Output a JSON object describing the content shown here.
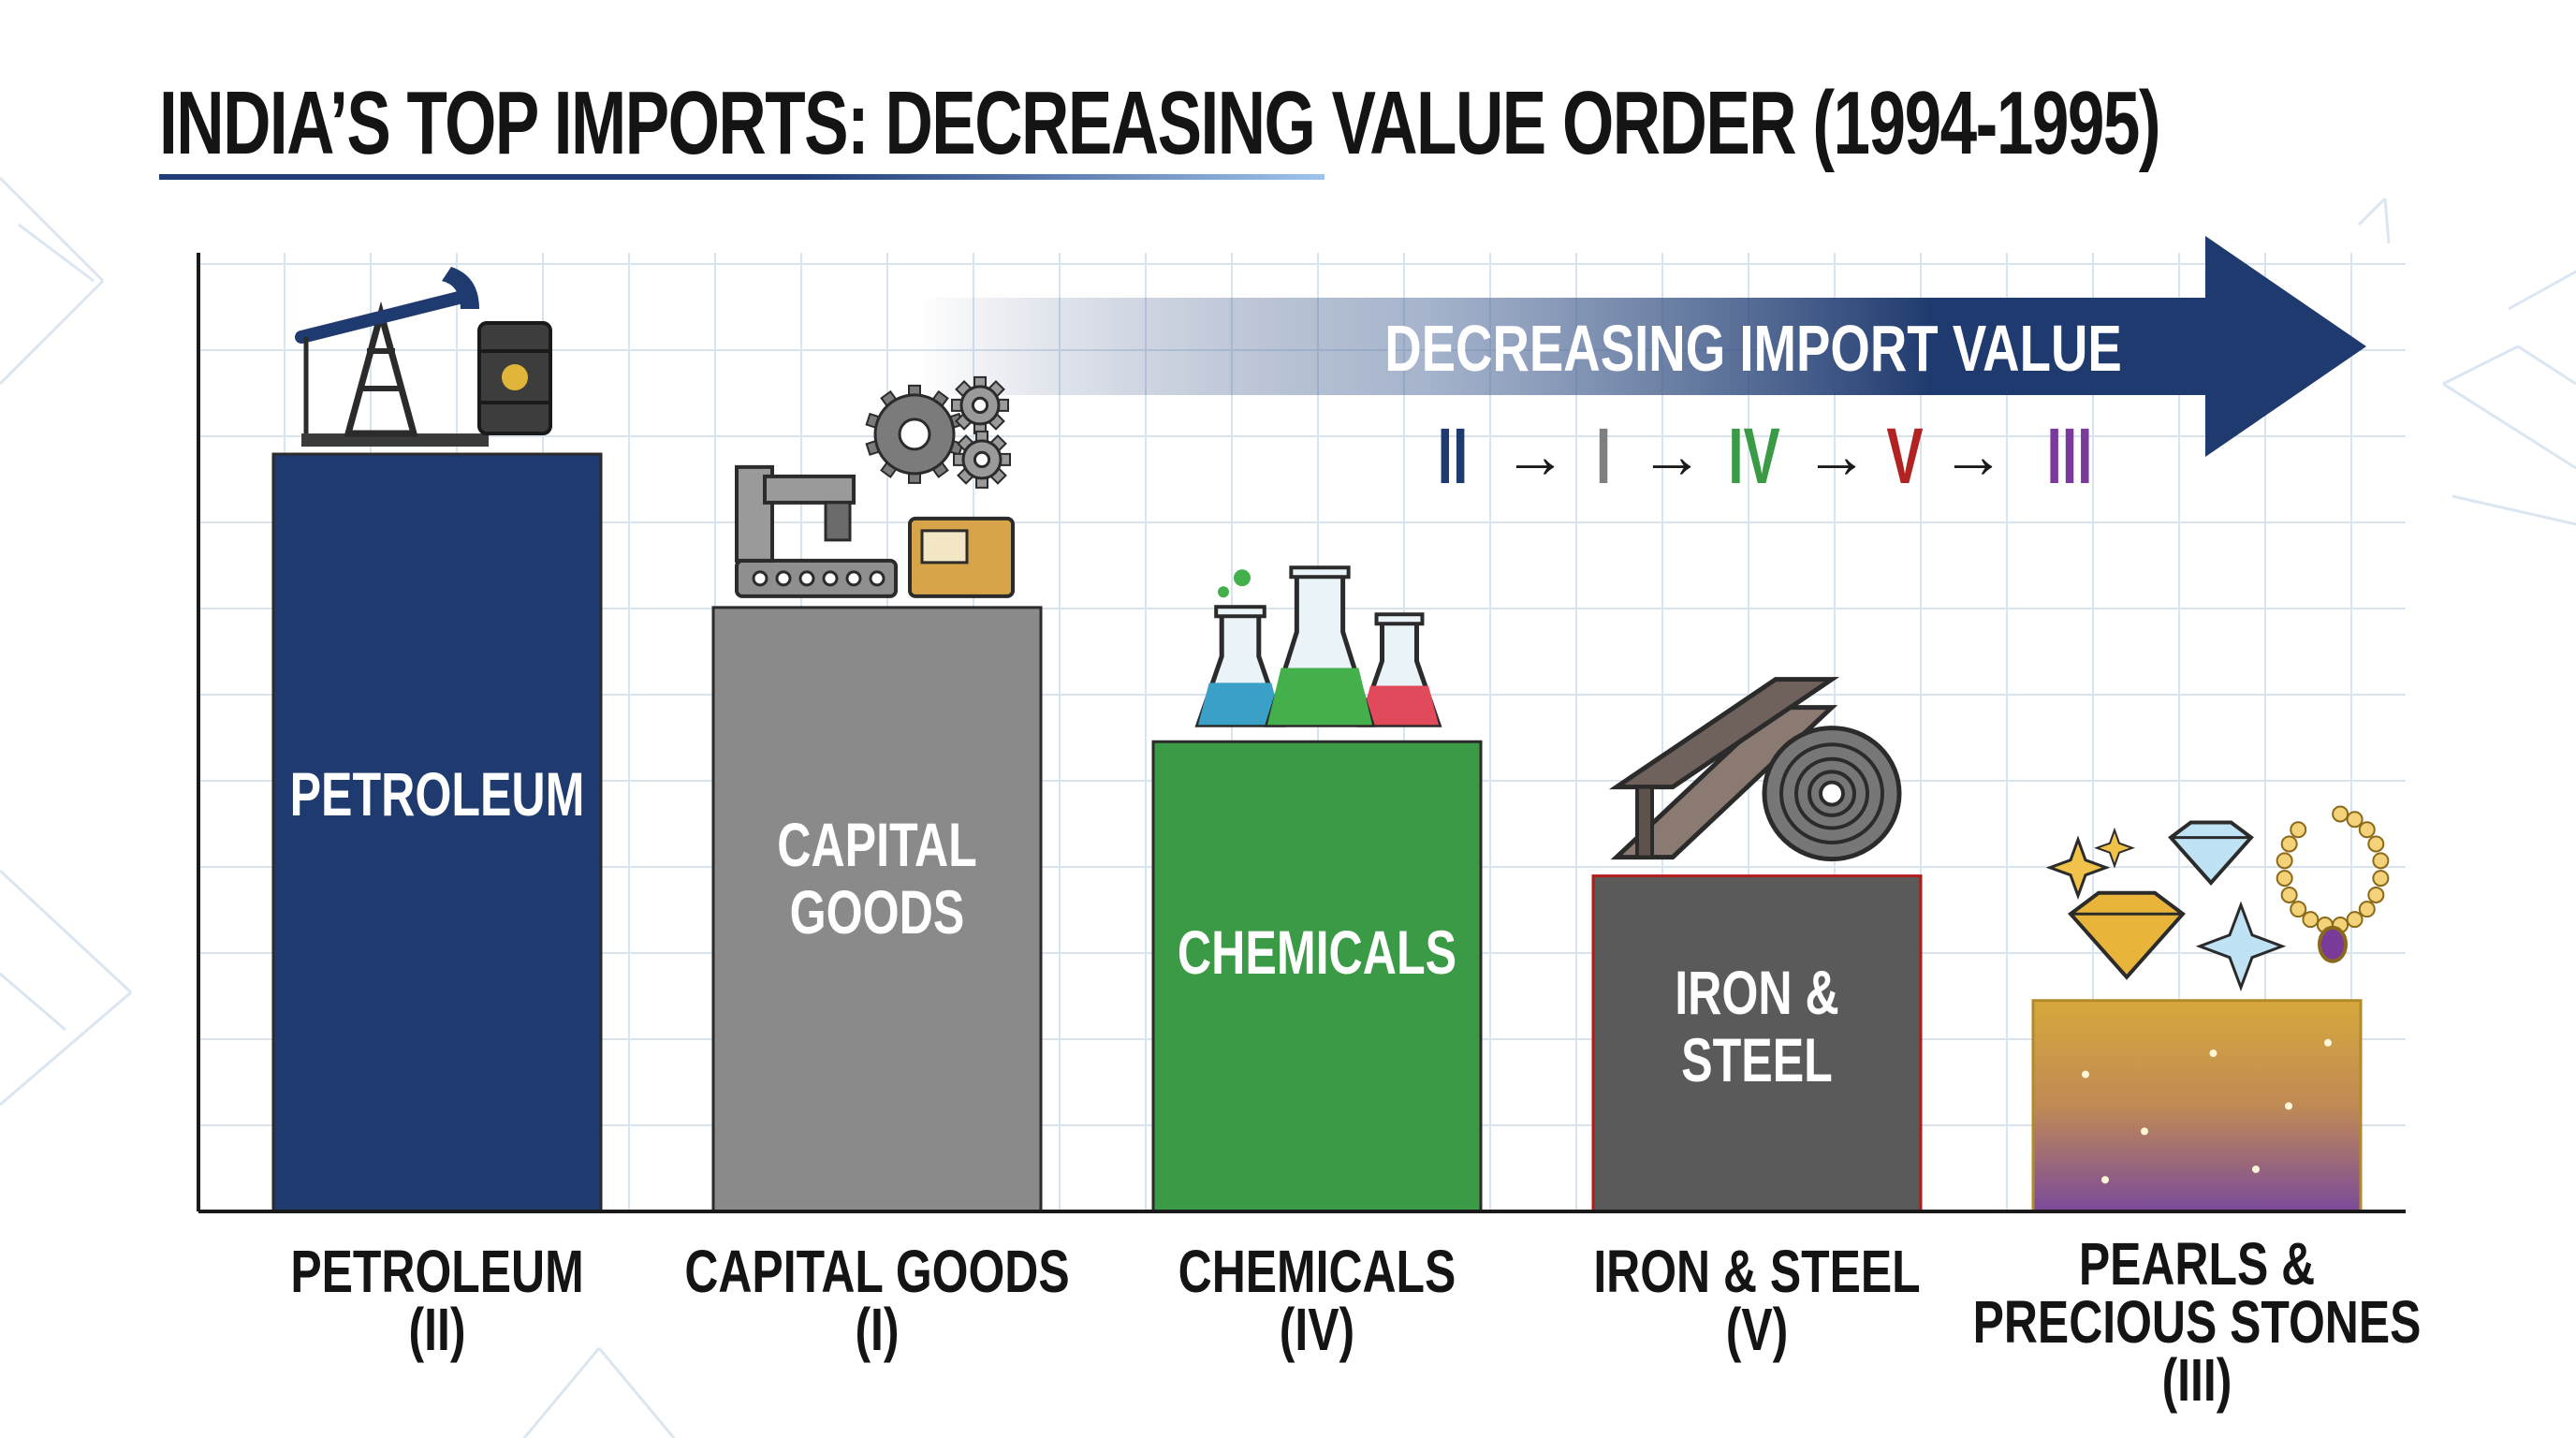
{
  "chart_data": {
    "type": "bar",
    "title": "INDIA’S TOP IMPORTS: DECREASING VALUE ORDER (1994-1995)",
    "trend_label": "DECREASING IMPORT VALUE",
    "sequence": [
      {
        "text": "II",
        "color": "#1f3a6e"
      },
      {
        "text": "I",
        "color": "#7f7f7f"
      },
      {
        "text": "IV",
        "color": "#3a9a45"
      },
      {
        "text": "V",
        "color": "#b22222"
      },
      {
        "text": "III",
        "color": "#7a3a9a"
      }
    ],
    "sequence_arrow": "→",
    "xlabel": "",
    "ylabel": "",
    "ylim": [
      0,
      100
    ],
    "grid": true,
    "bars": [
      {
        "name": "petroleum",
        "bar_label": [
          "PETROLEUM"
        ],
        "axis_label": [
          "PETROLEUM",
          "(II)"
        ],
        "value": 79,
        "fill": "#1f3a6e",
        "label_color": "#ffffff",
        "icon": "oil-pump-and-barrel-icon"
      },
      {
        "name": "capital-goods",
        "bar_label": [
          "CAPITAL",
          "GOODS"
        ],
        "axis_label": [
          "CAPITAL GOODS",
          "(I)"
        ],
        "value": 63,
        "fill": "#8a8a8a",
        "label_color": "#ffffff",
        "icon": "machinery-and-gears-icon"
      },
      {
        "name": "chemicals",
        "bar_label": [
          "CHEMICALS"
        ],
        "axis_label": [
          "CHEMICALS",
          "(IV)"
        ],
        "value": 49,
        "fill": "#3a9a45",
        "label_color": "#ffffff",
        "icon": "chemical-flasks-icon"
      },
      {
        "name": "iron-steel",
        "bar_label": [
          "IRON &",
          "STEEL"
        ],
        "axis_label": [
          "IRON & STEEL",
          "(V)"
        ],
        "value": 35,
        "fill": "#5a5a5a",
        "label_color": "#ffffff",
        "icon": "steel-beam-and-coil-icon"
      },
      {
        "name": "pearls-stones",
        "bar_label": [],
        "axis_label": [
          "PEARLS &",
          "PRECIOUS STONES",
          "(III)"
        ],
        "value": 22,
        "fill": "#c9a23a",
        "label_color": "#ffffff",
        "icon": "gems-and-necklace-icon"
      }
    ]
  }
}
